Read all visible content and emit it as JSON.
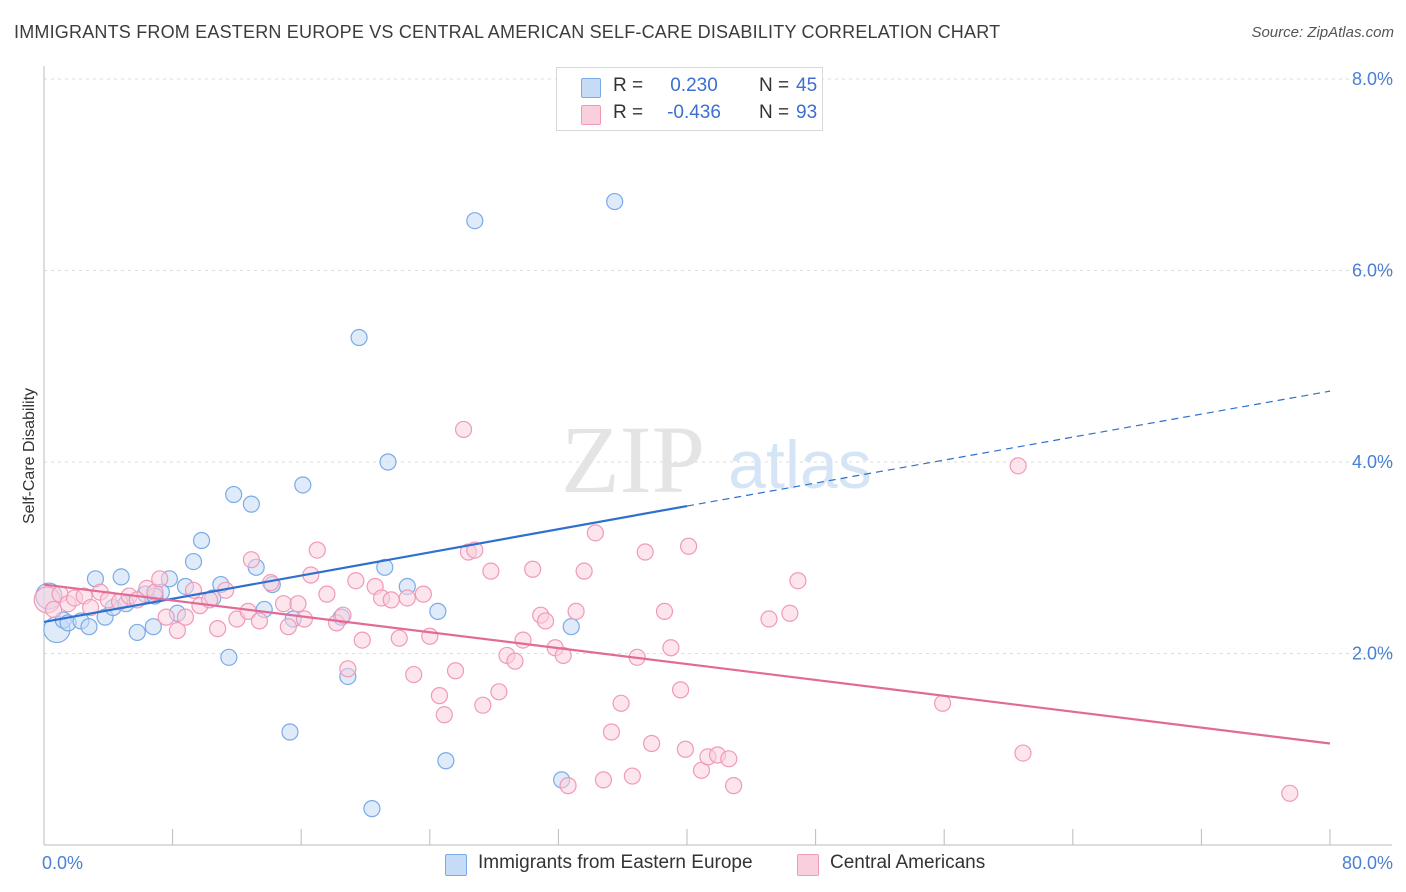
{
  "title": "IMMIGRANTS FROM EASTERN EUROPE VS CENTRAL AMERICAN SELF-CARE DISABILITY CORRELATION CHART",
  "source": "Source: ZipAtlas.com",
  "watermark": {
    "zip": "ZIP",
    "atlas": "atlas"
  },
  "legend": {
    "r_label": "R =",
    "n_label": "N =",
    "rows": [
      {
        "r": "0.230",
        "n": "45"
      },
      {
        "r": "-0.436",
        "n": "93"
      }
    ]
  },
  "chart_data": {
    "type": "scatter",
    "ylabel": "Self-Care Disability",
    "xlim": [
      0,
      80
    ],
    "ylim": [
      0,
      8
    ],
    "x_tick_labels": [
      "0.0%",
      "80.0%"
    ],
    "y_ticks": [
      2,
      4,
      6,
      8
    ],
    "y_tick_labels": [
      "2.0%",
      "4.0%",
      "6.0%",
      "8.0%"
    ],
    "grid": true,
    "legend_position": "top-center",
    "series": [
      {
        "name": "Immigrants from Eastern Europe",
        "color": "#7aaae8",
        "fill": "#c6dbf5",
        "line_color": "#2f6fce",
        "trend": {
          "x0": 0,
          "y0": 2.33,
          "x1": 40,
          "y1": 3.54,
          "dash_to_x": 80,
          "dash_to_y": 4.74
        },
        "points": [
          [
            0.3,
            2.6
          ],
          [
            0.8,
            2.25
          ],
          [
            1.2,
            2.35
          ],
          [
            1.5,
            2.32
          ],
          [
            2.3,
            2.34
          ],
          [
            2.8,
            2.28
          ],
          [
            3.2,
            2.78
          ],
          [
            3.8,
            2.38
          ],
          [
            4.3,
            2.48
          ],
          [
            4.8,
            2.8
          ],
          [
            5.1,
            2.52
          ],
          [
            5.8,
            2.22
          ],
          [
            6.3,
            2.62
          ],
          [
            6.8,
            2.28
          ],
          [
            7.3,
            2.64
          ],
          [
            7.8,
            2.78
          ],
          [
            8.3,
            2.42
          ],
          [
            8.8,
            2.7
          ],
          [
            9.3,
            2.96
          ],
          [
            9.8,
            3.18
          ],
          [
            10.5,
            2.58
          ],
          [
            11.0,
            2.72
          ],
          [
            11.5,
            1.96
          ],
          [
            11.8,
            3.66
          ],
          [
            12.9,
            3.56
          ],
          [
            13.2,
            2.9
          ],
          [
            13.7,
            2.46
          ],
          [
            14.2,
            2.72
          ],
          [
            15.3,
            1.18
          ],
          [
            15.5,
            2.36
          ],
          [
            16.1,
            3.76
          ],
          [
            18.5,
            2.38
          ],
          [
            18.9,
            1.76
          ],
          [
            19.6,
            5.3
          ],
          [
            20.4,
            0.38
          ],
          [
            21.2,
            2.9
          ],
          [
            21.4,
            4.0
          ],
          [
            22.6,
            2.7
          ],
          [
            24.5,
            2.44
          ],
          [
            25.0,
            0.88
          ],
          [
            26.8,
            6.52
          ],
          [
            32.2,
            0.68
          ],
          [
            32.8,
            2.28
          ],
          [
            35.5,
            6.72
          ],
          [
            6.9,
            2.6
          ]
        ]
      },
      {
        "name": "Central Americans",
        "color": "#f09ab8",
        "fill": "#f9cfdd",
        "line_color": "#e26a96",
        "trend": {
          "x0": 0,
          "y0": 2.72,
          "x1": 80,
          "y1": 1.06
        },
        "points": [
          [
            0.2,
            2.56
          ],
          [
            0.6,
            2.46
          ],
          [
            1.0,
            2.62
          ],
          [
            1.5,
            2.52
          ],
          [
            1.9,
            2.58
          ],
          [
            2.5,
            2.6
          ],
          [
            2.9,
            2.48
          ],
          [
            3.5,
            2.64
          ],
          [
            4.0,
            2.56
          ],
          [
            4.7,
            2.54
          ],
          [
            5.3,
            2.6
          ],
          [
            5.8,
            2.56
          ],
          [
            6.4,
            2.68
          ],
          [
            6.9,
            2.64
          ],
          [
            7.2,
            2.78
          ],
          [
            7.6,
            2.38
          ],
          [
            8.3,
            2.24
          ],
          [
            8.8,
            2.38
          ],
          [
            9.3,
            2.66
          ],
          [
            9.7,
            2.5
          ],
          [
            10.3,
            2.56
          ],
          [
            10.8,
            2.26
          ],
          [
            11.3,
            2.66
          ],
          [
            12.0,
            2.36
          ],
          [
            12.7,
            2.44
          ],
          [
            12.9,
            2.98
          ],
          [
            13.4,
            2.34
          ],
          [
            14.1,
            2.74
          ],
          [
            14.9,
            2.52
          ],
          [
            15.2,
            2.28
          ],
          [
            15.8,
            2.52
          ],
          [
            16.2,
            2.36
          ],
          [
            16.6,
            2.82
          ],
          [
            17.0,
            3.08
          ],
          [
            17.6,
            2.62
          ],
          [
            18.2,
            2.32
          ],
          [
            18.6,
            2.4
          ],
          [
            18.9,
            1.84
          ],
          [
            19.4,
            2.76
          ],
          [
            19.8,
            2.14
          ],
          [
            20.6,
            2.7
          ],
          [
            21.0,
            2.58
          ],
          [
            21.6,
            2.56
          ],
          [
            22.1,
            2.16
          ],
          [
            22.6,
            2.58
          ],
          [
            23.0,
            1.78
          ],
          [
            23.6,
            2.62
          ],
          [
            24.0,
            2.18
          ],
          [
            24.6,
            1.56
          ],
          [
            24.9,
            1.36
          ],
          [
            25.6,
            1.82
          ],
          [
            26.1,
            4.34
          ],
          [
            26.4,
            3.06
          ],
          [
            26.8,
            3.08
          ],
          [
            27.3,
            1.46
          ],
          [
            27.8,
            2.86
          ],
          [
            28.3,
            1.6
          ],
          [
            28.8,
            1.98
          ],
          [
            29.3,
            1.92
          ],
          [
            29.8,
            2.14
          ],
          [
            30.4,
            2.88
          ],
          [
            30.9,
            2.4
          ],
          [
            31.2,
            2.34
          ],
          [
            31.8,
            2.06
          ],
          [
            32.3,
            1.98
          ],
          [
            32.6,
            0.62
          ],
          [
            33.1,
            2.44
          ],
          [
            33.6,
            2.86
          ],
          [
            34.3,
            3.26
          ],
          [
            34.8,
            0.68
          ],
          [
            35.3,
            1.18
          ],
          [
            35.9,
            1.48
          ],
          [
            36.6,
            0.72
          ],
          [
            36.9,
            1.96
          ],
          [
            37.4,
            3.06
          ],
          [
            37.8,
            1.06
          ],
          [
            38.6,
            2.44
          ],
          [
            39.0,
            2.06
          ],
          [
            39.6,
            1.62
          ],
          [
            39.9,
            1.0
          ],
          [
            40.1,
            3.12
          ],
          [
            40.9,
            0.78
          ],
          [
            41.3,
            0.92
          ],
          [
            41.9,
            0.94
          ],
          [
            42.6,
            0.9
          ],
          [
            42.9,
            0.62
          ],
          [
            45.1,
            2.36
          ],
          [
            46.4,
            2.42
          ],
          [
            46.9,
            2.76
          ],
          [
            55.9,
            1.48
          ],
          [
            60.6,
            3.96
          ],
          [
            60.9,
            0.96
          ],
          [
            77.5,
            0.54
          ]
        ]
      }
    ]
  }
}
